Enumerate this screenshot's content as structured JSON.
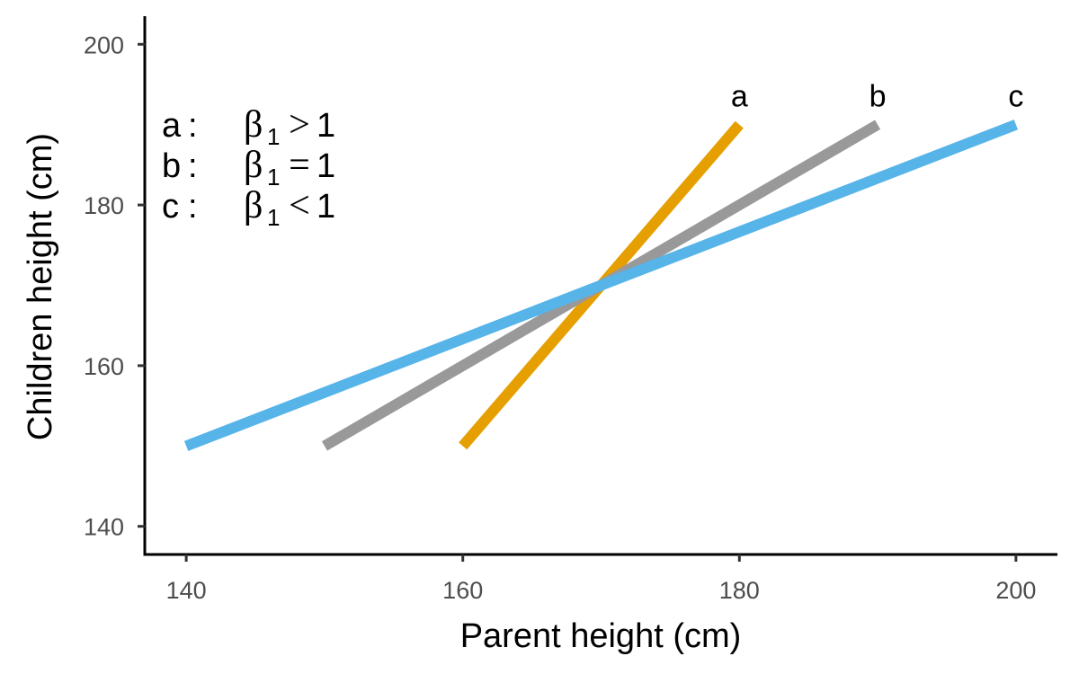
{
  "chart_data": {
    "type": "line",
    "xlabel": "Parent height (cm)",
    "ylabel": "Children height (cm)",
    "xlim": [
      137,
      203
    ],
    "ylim": [
      136.5,
      203.5
    ],
    "xticks": [
      140,
      160,
      180,
      200
    ],
    "yticks": [
      140,
      160,
      180,
      200
    ],
    "grid": false,
    "series": [
      {
        "name": "a",
        "color": "#E69F00",
        "x": [
          160,
          180
        ],
        "y": [
          150,
          190
        ]
      },
      {
        "name": "b",
        "color": "#999999",
        "x": [
          150,
          190
        ],
        "y": [
          150,
          190
        ]
      },
      {
        "name": "c",
        "color": "#56B4E9",
        "x": [
          140,
          200
        ],
        "y": [
          150,
          190
        ]
      }
    ],
    "legend": {
      "placement": "top-left",
      "entries": [
        {
          "key": "a",
          "colon": ":",
          "beta": "β",
          "sub": "1",
          "relation": ">",
          "value": "1"
        },
        {
          "key": "b",
          "colon": ":",
          "beta": "β",
          "sub": "1",
          "relation": "=",
          "value": "1"
        },
        {
          "key": "c",
          "colon": ":",
          "beta": "β",
          "sub": "1",
          "relation": "<",
          "value": "1"
        }
      ]
    }
  }
}
